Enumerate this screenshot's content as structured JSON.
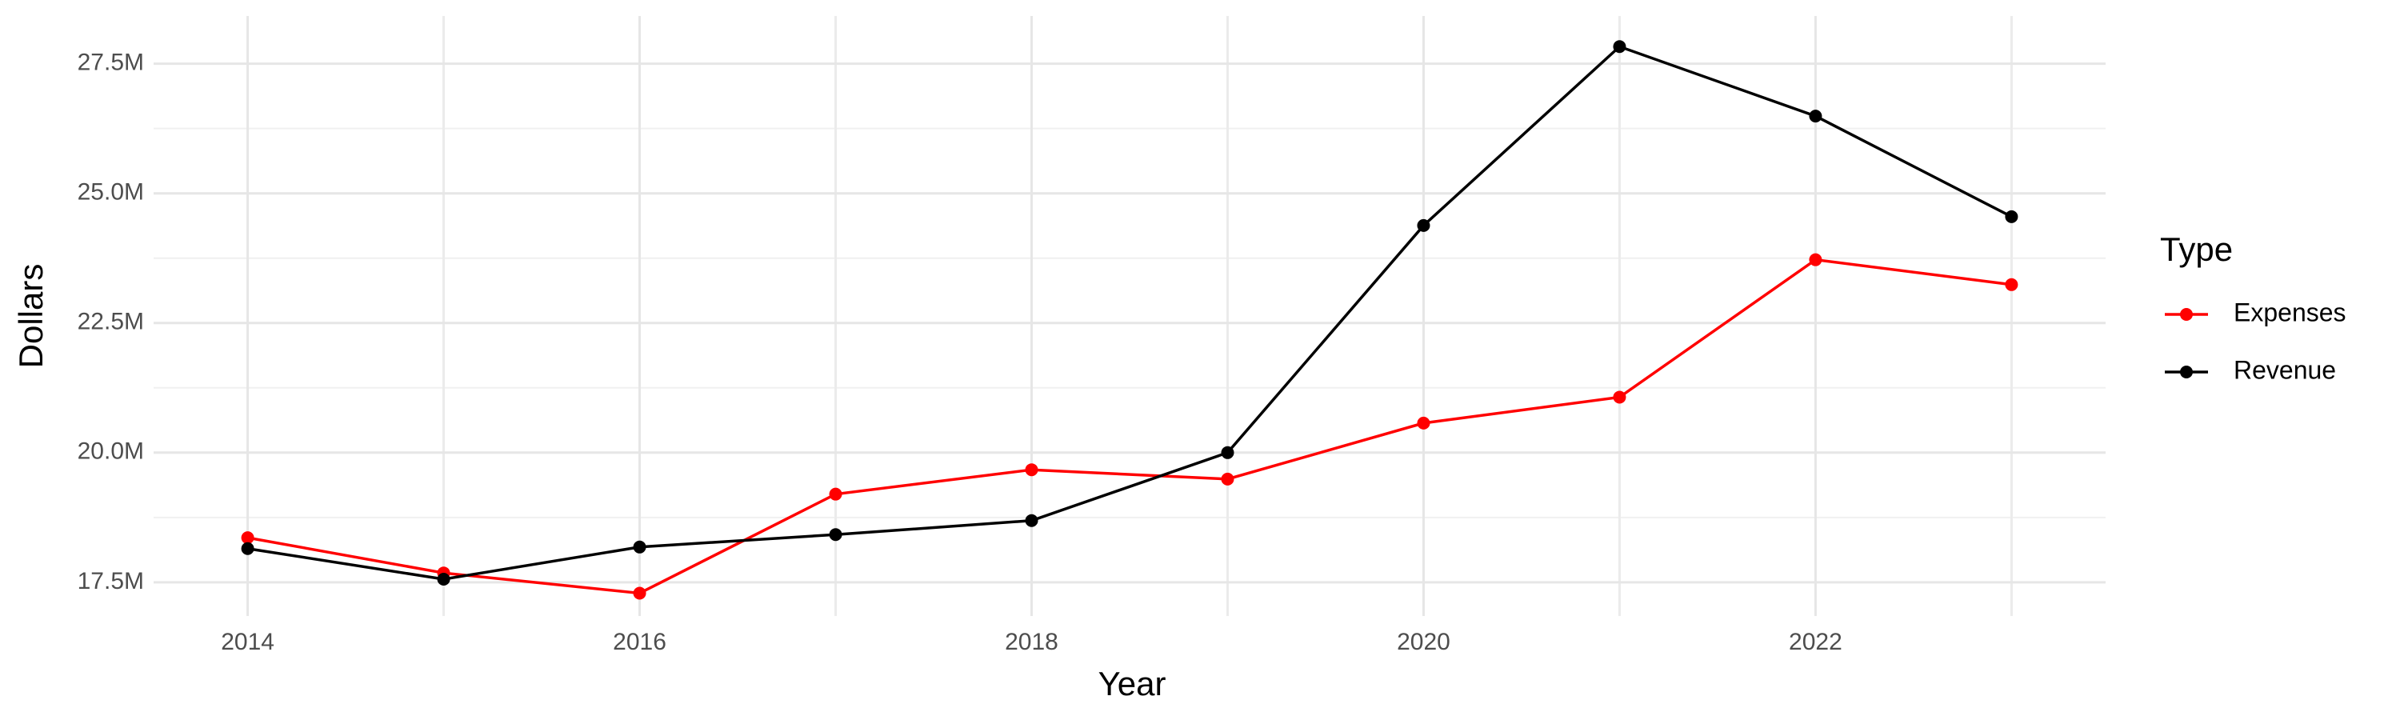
{
  "chart_data": {
    "type": "line",
    "x_label": "Year",
    "y_label": "Dollars",
    "x": [
      2014,
      2015,
      2016,
      2017,
      2018,
      2019,
      2020,
      2021,
      2022,
      2023
    ],
    "series": [
      {
        "name": "Expenses",
        "color": "#ff0000",
        "values": [
          18360000,
          17680000,
          17290000,
          19200000,
          19670000,
          19490000,
          20570000,
          21070000,
          23720000,
          23240000
        ]
      },
      {
        "name": "Revenue",
        "color": "#000000",
        "values": [
          18150000,
          17560000,
          18180000,
          18420000,
          18690000,
          20000000,
          24380000,
          27830000,
          26490000,
          24550000
        ]
      }
    ],
    "legend_title": "Type",
    "legend_position": "right",
    "xlim": [
      2013.52,
      2023.48
    ],
    "xticks": [
      2014,
      2016,
      2018,
      2020,
      2022
    ],
    "ylim": [
      16850000,
      28420000
    ],
    "yticks": [
      {
        "value": 17500000,
        "label": "17.5M"
      },
      {
        "value": 20000000,
        "label": "20.0M"
      },
      {
        "value": 22500000,
        "label": "22.5M"
      },
      {
        "value": 25000000,
        "label": "25.0M"
      },
      {
        "value": 27500000,
        "label": "27.5M"
      }
    ],
    "grid": true
  }
}
